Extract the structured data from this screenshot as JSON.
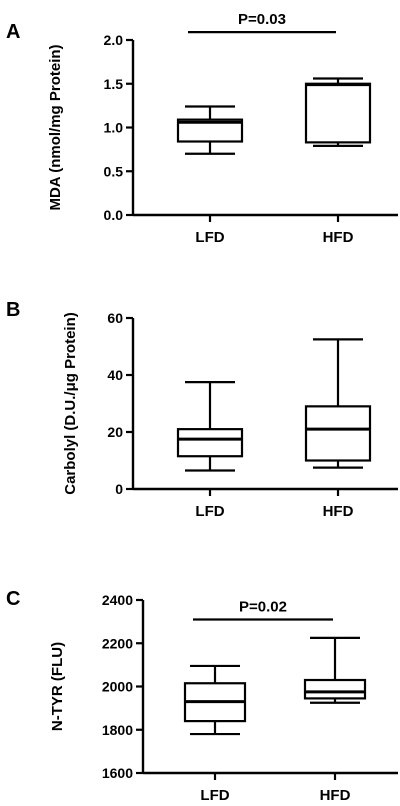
{
  "chart_data": [
    {
      "panel": "A",
      "type": "box",
      "ylabel": "MDA (nmol/mg Protein)",
      "ylim": [
        0,
        2.0
      ],
      "yticks": [
        "0.0",
        "0.5",
        "1.0",
        "1.5",
        "2.0"
      ],
      "tick_values": [
        0,
        0.5,
        1.0,
        1.5,
        2.0
      ],
      "categories": [
        "LFD",
        "HFD"
      ],
      "boxes": [
        {
          "category": "LFD",
          "min": 0.7,
          "q1": 0.84,
          "median": 1.06,
          "q3": 1.09,
          "max": 1.24,
          "hatched": false
        },
        {
          "category": "HFD",
          "min": 0.79,
          "q1": 0.83,
          "median": 1.49,
          "q3": 1.5,
          "max": 1.56,
          "hatched": true
        }
      ],
      "annotation": {
        "text": "P=0.03",
        "y": 2.09
      }
    },
    {
      "panel": "B",
      "type": "box",
      "ylabel": "Carbolyl (D.U./μg Protein)",
      "ylim": [
        0,
        60
      ],
      "yticks": [
        "0",
        "20",
        "40",
        "60"
      ],
      "tick_values": [
        0,
        20,
        40,
        60
      ],
      "categories": [
        "LFD",
        "HFD"
      ],
      "boxes": [
        {
          "category": "LFD",
          "min": 6.5,
          "q1": 11.5,
          "median": 17.5,
          "q3": 21,
          "max": 37.5,
          "hatched": false
        },
        {
          "category": "HFD",
          "min": 7.5,
          "q1": 10,
          "median": 21,
          "q3": 29,
          "max": 52.5,
          "hatched": true
        }
      ],
      "annotation": null
    },
    {
      "panel": "C",
      "type": "box",
      "ylabel": "N-TYR (FLU)",
      "ylim": [
        1600,
        2400
      ],
      "yticks": [
        "1600",
        "1800",
        "2000",
        "2200",
        "2400"
      ],
      "tick_values": [
        1600,
        1800,
        2000,
        2200,
        2400
      ],
      "categories": [
        "LFD",
        "HFD"
      ],
      "boxes": [
        {
          "category": "LFD",
          "min": 1780,
          "q1": 1840,
          "median": 1930,
          "q3": 2015,
          "max": 2095,
          "hatched": false
        },
        {
          "category": "HFD",
          "min": 1925,
          "q1": 1945,
          "median": 1975,
          "q3": 2030,
          "max": 2225,
          "hatched": true
        }
      ],
      "annotation": {
        "text": "P=0.02",
        "y": 2310
      }
    }
  ]
}
